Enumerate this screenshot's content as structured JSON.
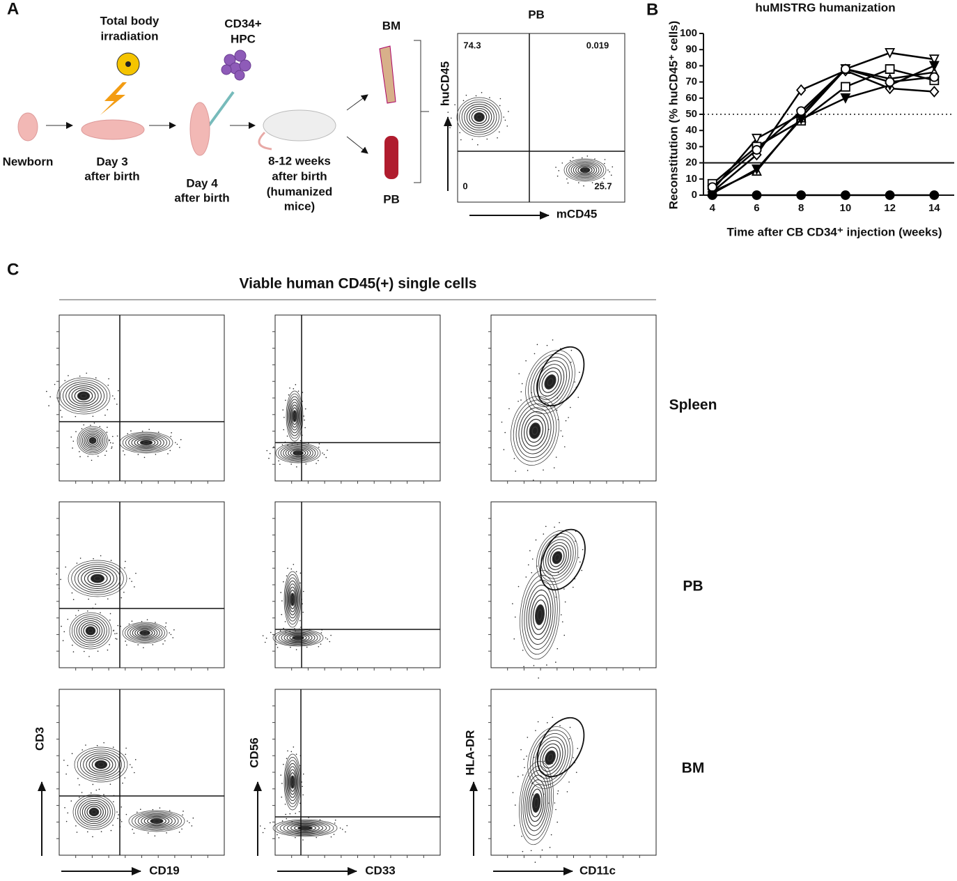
{
  "figure": {
    "panel_a": {
      "letter": "A",
      "newborn": "Newborn",
      "irradiation": [
        "Total body",
        "irradiation"
      ],
      "day3": [
        "Day 3",
        "after birth"
      ],
      "hpc": [
        "CD34+",
        "HPC"
      ],
      "day4": [
        "Day 4",
        "after birth"
      ],
      "weeks": [
        "8-12 weeks",
        "after birth",
        "(humanized",
        "mice)"
      ],
      "bm": "BM",
      "pb": "PB",
      "flow": {
        "title": "PB",
        "y_label": "huCD45",
        "x_label": "mCD45",
        "quadrants": [
          74.3,
          0.019,
          0,
          25.7
        ]
      }
    },
    "panel_b_letter": "B",
    "panel_c": {
      "letter": "C",
      "title": "Viable human CD45(+) single cells",
      "rows": [
        "Spleen",
        "PB",
        "BM"
      ],
      "columns": [
        {
          "x_label": "CD19",
          "y_label": "CD3"
        },
        {
          "x_label": "CD33",
          "y_label": "CD56"
        },
        {
          "x_label": "CD11c",
          "y_label": "HLA-DR"
        }
      ]
    }
  },
  "chart_data": {
    "type": "line",
    "title": "huMISTRG humanization",
    "x_label": "Time after CB CD34⁺ injection (weeks)",
    "y_label": "Reconstitution (% huCD45⁺ cells)",
    "x": [
      4,
      6,
      8,
      10,
      12,
      14
    ],
    "xlim": [
      3.6,
      14.9
    ],
    "xticks": [
      4,
      6,
      8,
      10,
      12,
      14
    ],
    "ylim": [
      0,
      100
    ],
    "yticks": [
      0,
      10,
      20,
      30,
      40,
      50,
      60,
      70,
      80,
      90,
      100
    ],
    "reference_lines": [
      {
        "value": 50,
        "style": "dotted"
      },
      {
        "value": 20,
        "style": "solid"
      }
    ],
    "series": [
      {
        "marker": "triangle-down-open",
        "color": "#000000",
        "values": [
          3,
          35,
          50,
          78,
          88,
          84
        ]
      },
      {
        "marker": "square-open",
        "color": "#000000",
        "values": [
          7,
          30,
          46,
          67,
          78,
          71
        ]
      },
      {
        "marker": "diamond-open",
        "color": "#000000",
        "values": [
          2,
          25,
          65,
          77,
          66,
          64
        ]
      },
      {
        "marker": "triangle-up-open",
        "color": "#000000",
        "values": [
          2,
          15,
          48,
          78,
          72,
          76
        ]
      },
      {
        "marker": "triangle-down-filled",
        "color": "#000000",
        "values": [
          1,
          16,
          47,
          60,
          68,
          80
        ]
      },
      {
        "marker": "circle-open",
        "color": "#000000",
        "values": [
          5,
          28,
          52,
          78,
          70,
          73
        ]
      },
      {
        "marker": "circle-filled",
        "color": "#000000",
        "values": [
          0,
          0,
          0,
          0,
          0,
          0
        ]
      }
    ]
  }
}
